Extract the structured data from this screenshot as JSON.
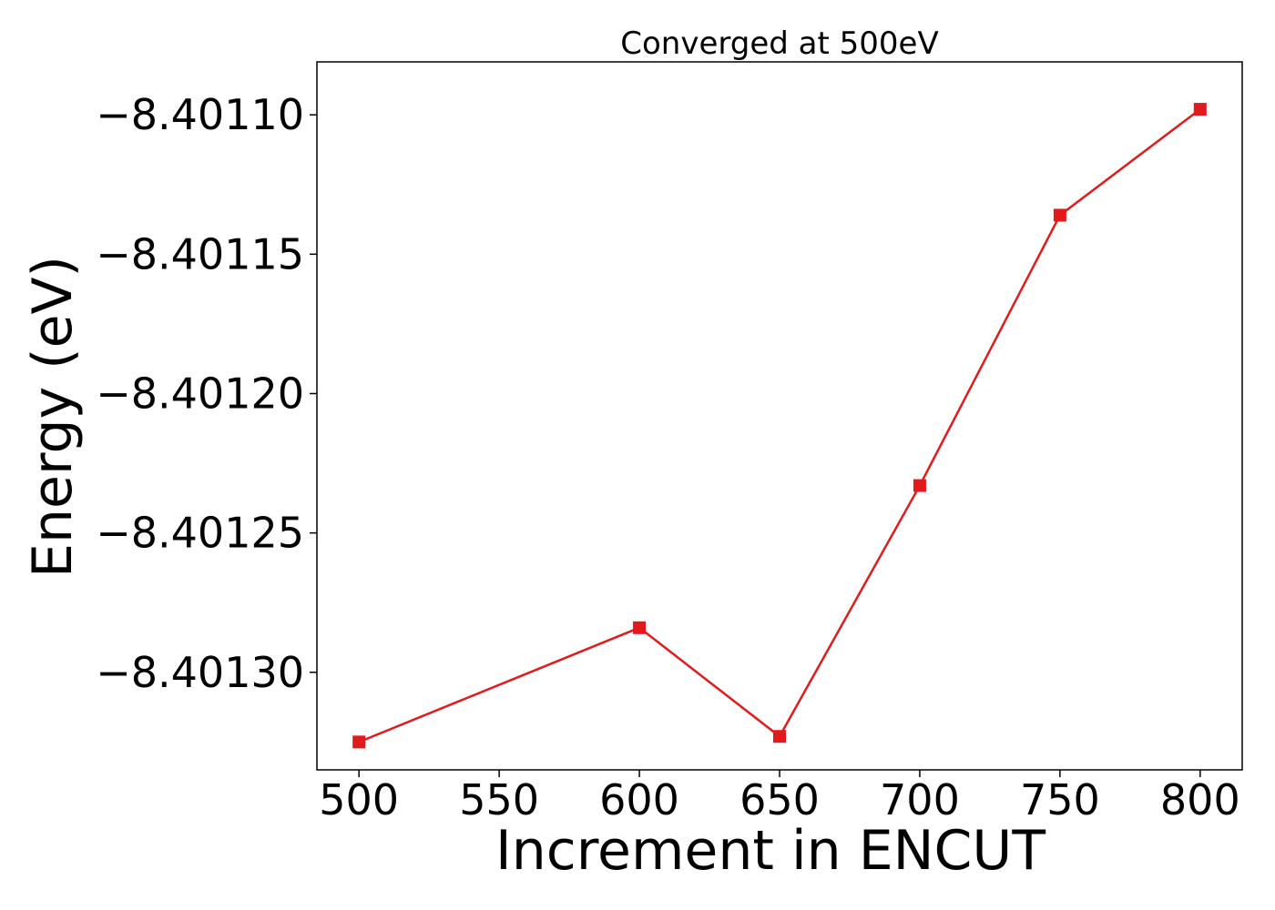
{
  "chart_data": {
    "type": "line",
    "title": "Converged at 500eV",
    "xlabel": "Increment in ENCUT",
    "ylabel": "Energy (eV)",
    "xlim": [
      485,
      815
    ],
    "ylim": [
      -8.401335,
      -8.401081
    ],
    "xticks": [
      500,
      550,
      600,
      650,
      700,
      750,
      800
    ],
    "xtick_labels": [
      "500",
      "550",
      "600",
      "650",
      "700",
      "750",
      "800"
    ],
    "yticks": [
      -8.4011,
      -8.40115,
      -8.4012,
      -8.40125,
      -8.4013
    ],
    "ytick_labels": [
      "−8.40110",
      "−8.40115",
      "−8.40120",
      "−8.40125",
      "−8.40130"
    ],
    "grid": false,
    "series": [
      {
        "x": [
          500,
          600,
          650,
          700,
          750,
          800
        ],
        "values": [
          -8.401325,
          -8.401284,
          -8.401323,
          -8.401233,
          -8.401136,
          -8.401098
        ],
        "color": "#e31a1c",
        "marker": "square"
      }
    ]
  }
}
